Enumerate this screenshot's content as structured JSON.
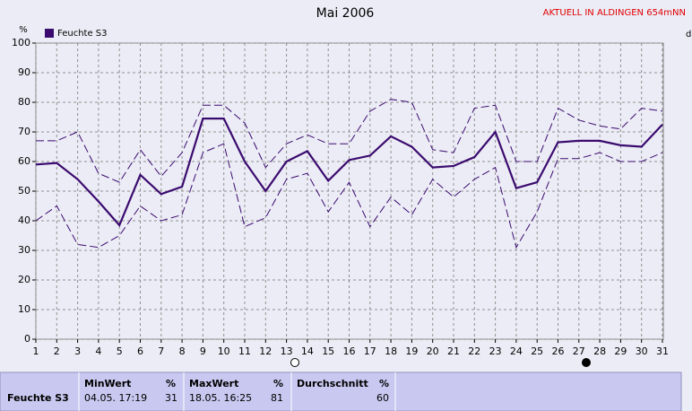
{
  "chart_data": {
    "type": "line",
    "title": "Mai 2006",
    "subtitle": "AKTUELL IN ALDINGEN 654mNN",
    "y_label": "%",
    "right_label": "d",
    "x": [
      1,
      2,
      3,
      4,
      5,
      6,
      7,
      8,
      9,
      10,
      11,
      12,
      13,
      14,
      15,
      16,
      17,
      18,
      19,
      20,
      21,
      22,
      23,
      24,
      25,
      26,
      27,
      28,
      29,
      30,
      31
    ],
    "xlim": [
      1,
      31
    ],
    "xticks": [
      1,
      2,
      3,
      4,
      5,
      6,
      7,
      8,
      9,
      10,
      11,
      12,
      13,
      14,
      15,
      16,
      17,
      18,
      19,
      20,
      21,
      22,
      23,
      24,
      25,
      26,
      27,
      28,
      29,
      30,
      31
    ],
    "ylim": [
      0,
      100
    ],
    "yticks": [
      0,
      10,
      20,
      30,
      40,
      50,
      60,
      70,
      80,
      90,
      100
    ],
    "grid": true,
    "legend": "top-left",
    "series": [
      {
        "name": "Feuchte S3",
        "color": "#3a0a6e",
        "values": [
          59,
          59.5,
          54,
          46.5,
          38.5,
          55.5,
          49,
          51.5,
          74.5,
          74.5,
          60,
          50,
          60,
          63.5,
          53.5,
          60.5,
          62,
          68.5,
          65,
          58,
          58.5,
          61.5,
          70,
          51,
          53,
          66.5,
          67,
          67,
          65.5,
          65,
          72.5
        ]
      },
      {
        "color": "#3a0a6e",
        "dashed": true,
        "values": [
          67,
          67,
          70,
          56,
          53,
          64,
          55,
          63,
          79,
          79,
          73,
          58,
          66,
          69,
          66,
          66,
          77,
          81,
          80,
          64,
          63,
          78,
          79,
          60,
          60,
          78,
          74,
          72,
          71,
          78,
          77
        ]
      },
      {
        "color": "#3a0a6e",
        "dashed": true,
        "values": [
          40,
          45,
          32,
          31,
          35,
          45,
          40,
          42,
          63,
          66,
          38,
          41,
          54,
          56,
          43,
          53,
          38,
          48,
          42,
          54,
          48,
          54,
          58,
          31,
          43,
          61,
          61,
          63,
          60,
          60,
          63
        ]
      }
    ]
  },
  "table": {
    "label": "Feuchte S3",
    "min": {
      "title": "MinWert",
      "unit": "%",
      "time": "04.05. 17:19",
      "value": 31
    },
    "max": {
      "title": "MaxWert",
      "unit": "%",
      "time": "18.05. 16:25",
      "value": 81
    },
    "avg": {
      "title": "Durchschnitt",
      "unit": "%",
      "value": 60
    }
  }
}
